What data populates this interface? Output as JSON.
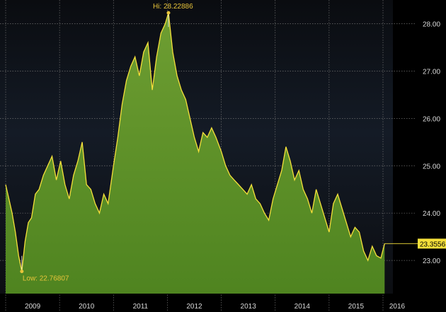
{
  "chart_data": {
    "type": "area",
    "title": "",
    "xlabel": "",
    "ylabel": "",
    "x_ticks": [
      "2009",
      "2010",
      "2011",
      "2012",
      "2013",
      "2014",
      "2015",
      "2016"
    ],
    "y_ticks": [
      "23.00",
      "24.00",
      "25.00",
      "26.00",
      "27.00",
      "28.00"
    ],
    "ylim": [
      22.3,
      28.5
    ],
    "xlim": [
      2009.0,
      2016.0
    ],
    "y_axis_side": "right",
    "grid": true,
    "colors": {
      "fill": "#5a8f23",
      "line": "#f5e03a",
      "annotation": "#e8c43a",
      "marker": "#f2f2f2",
      "grid": "#6f6f6f"
    },
    "annotations": {
      "high": {
        "label": "Hi: 28.22886",
        "x": 2012.02,
        "y": 28.22886
      },
      "low": {
        "label": "Low: 22.76807",
        "x": 2009.3,
        "y": 22.76807
      },
      "last": {
        "label": "23.3556",
        "y": 23.3556
      }
    },
    "series": [
      {
        "x": [
          2009.0,
          2009.06,
          2009.12,
          2009.18,
          2009.24,
          2009.3,
          2009.36,
          2009.42,
          2009.48,
          2009.55,
          2009.62,
          2009.7,
          2009.78,
          2009.86,
          2009.94,
          2010.02,
          2010.1,
          2010.18,
          2010.26,
          2010.34,
          2010.42,
          2010.5,
          2010.58,
          2010.66,
          2010.74,
          2010.82,
          2010.9,
          2011.0,
          2011.08,
          2011.16,
          2011.24,
          2011.32,
          2011.4,
          2011.48,
          2011.56,
          2011.64,
          2011.72,
          2011.8,
          2011.88,
          2011.96,
          2012.02,
          2012.1,
          2012.18,
          2012.26,
          2012.34,
          2012.42,
          2012.5,
          2012.58,
          2012.66,
          2012.74,
          2012.82,
          2012.9,
          2013.0,
          2013.08,
          2013.16,
          2013.24,
          2013.32,
          2013.4,
          2013.48,
          2013.56,
          2013.64,
          2013.72,
          2013.8,
          2013.88,
          2013.96,
          2014.04,
          2014.12,
          2014.2,
          2014.28,
          2014.36,
          2014.44,
          2014.52,
          2014.6,
          2014.68,
          2014.76,
          2014.84,
          2014.92,
          2015.0,
          2015.08,
          2015.16,
          2015.24,
          2015.32,
          2015.4,
          2015.48,
          2015.56,
          2015.64,
          2015.72,
          2015.8,
          2015.88,
          2015.96,
          2016.03
        ],
        "y": [
          24.6,
          24.3,
          24.0,
          23.6,
          23.1,
          22.77,
          23.4,
          23.8,
          23.9,
          24.4,
          24.5,
          24.8,
          25.0,
          25.2,
          24.7,
          25.1,
          24.6,
          24.3,
          24.8,
          25.1,
          25.5,
          24.6,
          24.5,
          24.2,
          24.0,
          24.4,
          24.2,
          25.0,
          25.6,
          26.3,
          26.8,
          27.1,
          27.3,
          26.9,
          27.4,
          27.6,
          26.6,
          27.3,
          27.8,
          28.0,
          28.22886,
          27.4,
          26.9,
          26.6,
          26.4,
          26.0,
          25.6,
          25.3,
          25.7,
          25.6,
          25.8,
          25.6,
          25.3,
          25.0,
          24.8,
          24.7,
          24.6,
          24.5,
          24.4,
          24.6,
          24.3,
          24.2,
          24.0,
          23.85,
          24.3,
          24.6,
          24.9,
          25.4,
          25.1,
          24.7,
          24.9,
          24.5,
          24.3,
          24.0,
          24.5,
          24.2,
          23.9,
          23.6,
          24.2,
          24.4,
          24.1,
          23.8,
          23.5,
          23.7,
          23.6,
          23.2,
          23.0,
          23.3,
          23.1,
          23.05,
          23.3556
        ]
      }
    ]
  }
}
